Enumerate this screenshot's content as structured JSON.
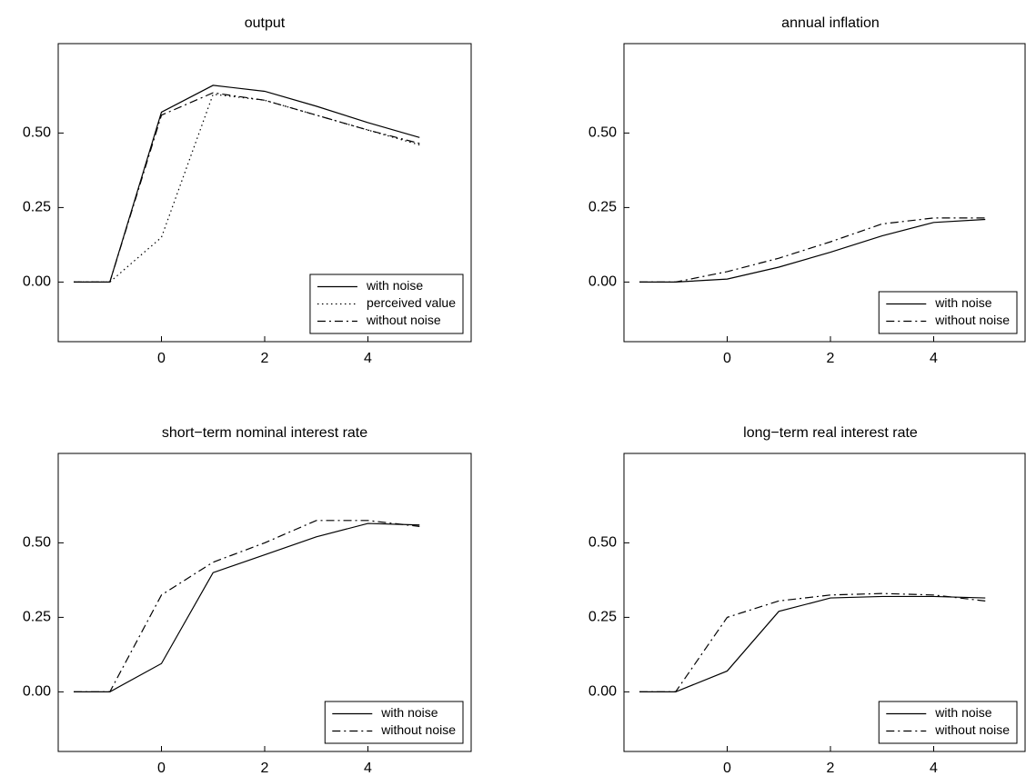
{
  "chart_data": [
    {
      "type": "line",
      "title": "output",
      "x": [
        -1.7,
        -1,
        0,
        1,
        2,
        3,
        4,
        5
      ],
      "series": [
        {
          "name": "with noise",
          "color": "#000000",
          "style": "solid",
          "values": [
            0,
            0,
            0.57,
            0.66,
            0.64,
            0.59,
            0.535,
            0.485
          ]
        },
        {
          "name": "perceived value",
          "color": "#000000",
          "style": "dotted",
          "values": [
            0,
            0,
            0.15,
            0.63,
            0.61,
            0.56,
            0.51,
            0.46
          ]
        },
        {
          "name": "without noise",
          "color": "#000000",
          "style": "dashdot",
          "values": [
            0,
            0,
            0.56,
            0.635,
            0.61,
            0.56,
            0.51,
            0.465
          ]
        }
      ],
      "xlim": [
        -2,
        6
      ],
      "ylim": [
        -0.2,
        0.8
      ],
      "xticks": [
        0,
        2,
        4
      ],
      "yticks": [
        {
          "value": 0,
          "label": "0.00"
        },
        {
          "value": 0.25,
          "label": "0.25"
        },
        {
          "value": 0.5,
          "label": "0.50"
        }
      ],
      "legend": "lower right"
    },
    {
      "type": "line",
      "title": "annual inflation",
      "x": [
        -1.7,
        -1,
        0,
        1,
        2,
        3,
        4,
        5
      ],
      "series": [
        {
          "name": "with noise",
          "color": "#000000",
          "style": "solid",
          "values": [
            0,
            0,
            0.01,
            0.05,
            0.1,
            0.155,
            0.2,
            0.21
          ]
        },
        {
          "name": "without noise",
          "color": "#000000",
          "style": "dashdot",
          "values": [
            0,
            0,
            0.035,
            0.08,
            0.135,
            0.195,
            0.215,
            0.215
          ]
        }
      ],
      "xlim": [
        -2,
        6
      ],
      "ylim": [
        -0.2,
        0.8
      ],
      "xticks": [
        0,
        2,
        4
      ],
      "yticks": [
        {
          "value": 0,
          "label": "0.00"
        },
        {
          "value": 0.25,
          "label": "0.25"
        },
        {
          "value": 0.5,
          "label": "0.50"
        }
      ],
      "legend": "lower right"
    },
    {
      "type": "line",
      "title": "short−term nominal interest rate",
      "x": [
        -1.7,
        -1,
        0,
        1,
        2,
        3,
        4,
        5
      ],
      "series": [
        {
          "name": "with noise",
          "color": "#000000",
          "style": "solid",
          "values": [
            0,
            0,
            0.095,
            0.4,
            0.46,
            0.52,
            0.565,
            0.56
          ]
        },
        {
          "name": "without noise",
          "color": "#000000",
          "style": "dashdot",
          "values": [
            0,
            0,
            0.325,
            0.435,
            0.5,
            0.575,
            0.575,
            0.555
          ]
        }
      ],
      "xlim": [
        -2,
        6
      ],
      "ylim": [
        -0.2,
        0.8
      ],
      "xticks": [
        0,
        2,
        4
      ],
      "yticks": [
        {
          "value": 0,
          "label": "0.00"
        },
        {
          "value": 0.25,
          "label": "0.25"
        },
        {
          "value": 0.5,
          "label": "0.50"
        }
      ],
      "legend": "lower right"
    },
    {
      "type": "line",
      "title": "long−term real interest rate",
      "x": [
        -1.7,
        -1,
        0,
        1,
        2,
        3,
        4,
        5
      ],
      "series": [
        {
          "name": "with noise",
          "color": "#000000",
          "style": "solid",
          "values": [
            0,
            0,
            0.07,
            0.27,
            0.315,
            0.32,
            0.32,
            0.315
          ]
        },
        {
          "name": "without noise",
          "color": "#000000",
          "style": "dashdot",
          "values": [
            0,
            0,
            0.25,
            0.305,
            0.325,
            0.33,
            0.325,
            0.305
          ]
        }
      ],
      "xlim": [
        -2,
        6
      ],
      "ylim": [
        -0.2,
        0.8
      ],
      "xticks": [
        0,
        2,
        4
      ],
      "yticks": [
        {
          "value": 0,
          "label": "0.00"
        },
        {
          "value": 0.25,
          "label": "0.25"
        },
        {
          "value": 0.5,
          "label": "0.50"
        }
      ],
      "legend": "lower right"
    }
  ]
}
